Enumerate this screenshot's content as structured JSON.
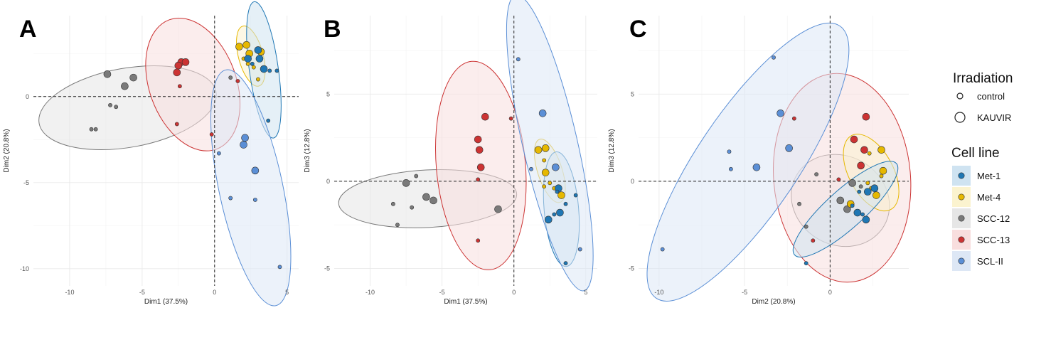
{
  "colors": {
    "Met-1": "#1f77b4",
    "Met-4": "#e6b800",
    "SCC-12": "#7a7a7a",
    "SCC-13": "#cc3333",
    "SCL-II": "#5b8fd6"
  },
  "fills": {
    "Met-1": "#cfe3f1",
    "Met-4": "#fbf3cf",
    "SCC-12": "#e6e6e6",
    "SCC-13": "#f8dede",
    "SCL-II": "#dde7f5"
  },
  "legend": {
    "irradiation_title": "Irradiation",
    "irradiation_items": [
      "control",
      "KAUVIR"
    ],
    "cellline_title": "Cell line",
    "cellline_items": [
      "Met-1",
      "Met-4",
      "SCC-12",
      "SCC-13",
      "SCL-II"
    ]
  },
  "chart_data": [
    {
      "type": "scatter",
      "panel": "A",
      "xlabel": "Dim1 (37.5%)",
      "ylabel": "Dim2 (20.8%)",
      "xlim": [
        -12.5,
        5.8
      ],
      "ylim": [
        -11.0,
        4.7
      ],
      "xticks": [
        -10,
        -5,
        0,
        5
      ],
      "yticks": [
        -10,
        -5,
        0
      ],
      "points": [
        {
          "g": "SCC-12",
          "x": -7.4,
          "y": 1.3,
          "k": 1
        },
        {
          "g": "SCC-12",
          "x": -5.6,
          "y": 1.1,
          "k": 1
        },
        {
          "g": "SCC-12",
          "x": -6.2,
          "y": 0.6,
          "k": 1
        },
        {
          "g": "SCC-12",
          "x": -7.2,
          "y": -0.5,
          "k": 0
        },
        {
          "g": "SCC-12",
          "x": -6.8,
          "y": -0.6,
          "k": 0
        },
        {
          "g": "SCC-12",
          "x": -8.5,
          "y": -1.9,
          "k": 0
        },
        {
          "g": "SCC-12",
          "x": -8.2,
          "y": -1.9,
          "k": 0
        },
        {
          "g": "SCC-12",
          "x": 1.1,
          "y": 1.1,
          "k": 0
        },
        {
          "g": "SCC-13",
          "x": -2.3,
          "y": 2.0,
          "k": 1
        },
        {
          "g": "SCC-13",
          "x": -2.0,
          "y": 2.0,
          "k": 1
        },
        {
          "g": "SCC-13",
          "x": -2.5,
          "y": 1.8,
          "k": 1
        },
        {
          "g": "SCC-13",
          "x": -2.6,
          "y": 1.4,
          "k": 1
        },
        {
          "g": "SCC-13",
          "x": -2.4,
          "y": 0.6,
          "k": 0
        },
        {
          "g": "SCC-13",
          "x": -2.6,
          "y": -1.6,
          "k": 0
        },
        {
          "g": "SCC-13",
          "x": -0.2,
          "y": -2.2,
          "k": 0
        },
        {
          "g": "SCC-13",
          "x": 1.6,
          "y": 0.9,
          "k": 0
        },
        {
          "g": "Met-4",
          "x": 1.7,
          "y": 2.9,
          "k": 1
        },
        {
          "g": "Met-4",
          "x": 2.2,
          "y": 3.0,
          "k": 1
        },
        {
          "g": "Met-4",
          "x": 3.2,
          "y": 2.6,
          "k": 1
        },
        {
          "g": "Met-4",
          "x": 2.4,
          "y": 2.5,
          "k": 1
        },
        {
          "g": "Met-4",
          "x": 2.0,
          "y": 2.2,
          "k": 0
        },
        {
          "g": "Met-4",
          "x": 2.3,
          "y": 1.9,
          "k": 0
        },
        {
          "g": "Met-4",
          "x": 2.7,
          "y": 1.7,
          "k": 0
        },
        {
          "g": "Met-4",
          "x": 3.0,
          "y": 1.0,
          "k": 0
        },
        {
          "g": "Met-1",
          "x": 3.0,
          "y": 2.7,
          "k": 1
        },
        {
          "g": "Met-1",
          "x": 2.3,
          "y": 2.2,
          "k": 1
        },
        {
          "g": "Met-1",
          "x": 3.1,
          "y": 2.2,
          "k": 1
        },
        {
          "g": "Met-1",
          "x": 3.4,
          "y": 1.6,
          "k": 1
        },
        {
          "g": "Met-1",
          "x": 3.8,
          "y": 1.5,
          "k": 0
        },
        {
          "g": "Met-1",
          "x": 4.3,
          "y": 1.5,
          "k": 0
        },
        {
          "g": "Met-1",
          "x": 2.6,
          "y": 1.9,
          "k": 0
        },
        {
          "g": "Met-1",
          "x": 3.7,
          "y": -1.4,
          "k": 0
        },
        {
          "g": "SCL-II",
          "x": 2.1,
          "y": -2.4,
          "k": 1
        },
        {
          "g": "SCL-II",
          "x": 2.0,
          "y": -2.8,
          "k": 1
        },
        {
          "g": "SCL-II",
          "x": 2.8,
          "y": -4.3,
          "k": 1
        },
        {
          "g": "SCL-II",
          "x": 0.3,
          "y": -3.3,
          "k": 0
        },
        {
          "g": "SCL-II",
          "x": 1.1,
          "y": -5.9,
          "k": 0
        },
        {
          "g": "SCL-II",
          "x": 2.8,
          "y": -6.0,
          "k": 0
        },
        {
          "g": "SCL-II",
          "x": 4.5,
          "y": -9.9,
          "k": 0
        }
      ],
      "ellipses": [
        {
          "g": "SCC-12",
          "cx": -6.0,
          "cy": -0.65,
          "rx": 6.2,
          "ry": 2.3,
          "rot": -10
        },
        {
          "g": "SCC-13",
          "cx": -1.5,
          "cy": 0.7,
          "rx": 3.0,
          "ry": 4.0,
          "rot": -20
        },
        {
          "g": "Met-4",
          "cx": 2.5,
          "cy": 2.35,
          "rx": 0.85,
          "ry": 1.8,
          "rot": -15
        },
        {
          "g": "Met-1",
          "cx": 3.4,
          "cy": 1.55,
          "rx": 1.0,
          "ry": 4.0,
          "rot": -8
        },
        {
          "g": "SCL-II",
          "cx": 2.5,
          "cy": -5.3,
          "rx": 2.2,
          "ry": 7.0,
          "rot": -12
        }
      ]
    },
    {
      "type": "scatter",
      "panel": "B",
      "xlabel": "Dim1 (37.5%)",
      "ylabel": "Dim3 (12.8%)",
      "xlim": [
        -12.5,
        5.8
      ],
      "ylim": [
        -6.0,
        9.5
      ],
      "xticks": [
        -10,
        -5,
        0,
        5
      ],
      "yticks": [
        -5,
        0,
        5
      ],
      "points": [
        {
          "g": "SCC-12",
          "x": -7.5,
          "y": -0.1,
          "k": 1
        },
        {
          "g": "SCC-12",
          "x": -6.1,
          "y": -0.9,
          "k": 1
        },
        {
          "g": "SCC-12",
          "x": -5.6,
          "y": -1.1,
          "k": 1
        },
        {
          "g": "SCC-12",
          "x": -6.8,
          "y": 0.3,
          "k": 0
        },
        {
          "g": "SCC-12",
          "x": -8.4,
          "y": -1.3,
          "k": 0
        },
        {
          "g": "SCC-12",
          "x": -7.1,
          "y": -1.5,
          "k": 0
        },
        {
          "g": "SCC-12",
          "x": -8.1,
          "y": -2.5,
          "k": 0
        },
        {
          "g": "SCC-12",
          "x": -1.1,
          "y": -1.6,
          "k": 1
        },
        {
          "g": "SCC-13",
          "x": -2.0,
          "y": 3.7,
          "k": 1
        },
        {
          "g": "SCC-13",
          "x": -2.5,
          "y": 2.4,
          "k": 1
        },
        {
          "g": "SCC-13",
          "x": -2.4,
          "y": 1.8,
          "k": 1
        },
        {
          "g": "SCC-13",
          "x": -2.3,
          "y": 0.8,
          "k": 1
        },
        {
          "g": "SCC-13",
          "x": -2.5,
          "y": 0.1,
          "k": 0
        },
        {
          "g": "SCC-13",
          "x": -2.5,
          "y": -3.4,
          "k": 0
        },
        {
          "g": "SCC-13",
          "x": -0.2,
          "y": 3.6,
          "k": 0
        },
        {
          "g": "Met-4",
          "x": 1.7,
          "y": 1.8,
          "k": 1
        },
        {
          "g": "Met-4",
          "x": 2.2,
          "y": 1.9,
          "k": 1
        },
        {
          "g": "Met-4",
          "x": 2.2,
          "y": 0.5,
          "k": 1
        },
        {
          "g": "Met-4",
          "x": 3.3,
          "y": -0.8,
          "k": 1
        },
        {
          "g": "Met-4",
          "x": 2.1,
          "y": 1.2,
          "k": 0
        },
        {
          "g": "Met-4",
          "x": 2.1,
          "y": -0.3,
          "k": 0
        },
        {
          "g": "Met-4",
          "x": 2.5,
          "y": -0.1,
          "k": 0
        },
        {
          "g": "Met-4",
          "x": 2.8,
          "y": -0.4,
          "k": 0
        },
        {
          "g": "Met-1",
          "x": 3.1,
          "y": -0.4,
          "k": 1
        },
        {
          "g": "Met-1",
          "x": 3.2,
          "y": -1.8,
          "k": 1
        },
        {
          "g": "Met-1",
          "x": 2.4,
          "y": -2.2,
          "k": 1
        },
        {
          "g": "Met-1",
          "x": 3.0,
          "y": -0.6,
          "k": 0
        },
        {
          "g": "Met-1",
          "x": 2.8,
          "y": -1.9,
          "k": 0
        },
        {
          "g": "Met-1",
          "x": 3.6,
          "y": -1.3,
          "k": 0
        },
        {
          "g": "Met-1",
          "x": 3.6,
          "y": -4.7,
          "k": 0
        },
        {
          "g": "Met-1",
          "x": 4.3,
          "y": -0.8,
          "k": 0
        },
        {
          "g": "SCL-II",
          "x": 2.0,
          "y": 3.9,
          "k": 1
        },
        {
          "g": "SCL-II",
          "x": 2.9,
          "y": 0.8,
          "k": 1
        },
        {
          "g": "SCL-II",
          "x": 0.3,
          "y": 7.0,
          "k": 0
        },
        {
          "g": "SCL-II",
          "x": 1.2,
          "y": 0.7,
          "k": 0
        },
        {
          "g": "SCL-II",
          "x": 4.6,
          "y": -3.9,
          "k": 0
        }
      ],
      "ellipses": [
        {
          "g": "SCC-12",
          "cx": -6.0,
          "cy": -1.0,
          "rx": 6.2,
          "ry": 1.65,
          "rot": -3
        },
        {
          "g": "SCC-13",
          "cx": -2.3,
          "cy": 0.9,
          "rx": 3.1,
          "ry": 6.0,
          "rot": -5
        },
        {
          "g": "Met-4",
          "cx": 2.5,
          "cy": 0.6,
          "rx": 0.85,
          "ry": 1.9,
          "rot": -18
        },
        {
          "g": "Met-1",
          "cx": 3.3,
          "cy": -1.6,
          "rx": 1.2,
          "ry": 3.3,
          "rot": -5
        },
        {
          "g": "SCL-II",
          "cx": 2.5,
          "cy": 2.2,
          "rx": 1.9,
          "ry": 8.7,
          "rot": -13
        }
      ]
    },
    {
      "type": "scatter",
      "panel": "C",
      "xlabel": "Dim2 (20.8%)",
      "ylabel": "Dim3 (12.8%)",
      "xlim": [
        -11.2,
        4.6
      ],
      "ylim": [
        -6.0,
        9.5
      ],
      "xticks": [
        -10,
        -5,
        0
      ],
      "yticks": [
        -5,
        0,
        5
      ],
      "points": [
        {
          "g": "SCC-12",
          "x": 0.6,
          "y": -1.1,
          "k": 1
        },
        {
          "g": "SCC-12",
          "x": 1.0,
          "y": -1.6,
          "k": 1
        },
        {
          "g": "SCC-12",
          "x": 1.3,
          "y": -0.1,
          "k": 1
        },
        {
          "g": "SCC-12",
          "x": -0.8,
          "y": 0.4,
          "k": 0
        },
        {
          "g": "SCC-12",
          "x": -1.8,
          "y": -1.3,
          "k": 0
        },
        {
          "g": "SCC-12",
          "x": -1.4,
          "y": -2.6,
          "k": 0
        },
        {
          "g": "SCC-12",
          "x": 1.8,
          "y": -0.3,
          "k": 0
        },
        {
          "g": "SCC-13",
          "x": 2.1,
          "y": 3.7,
          "k": 1
        },
        {
          "g": "SCC-13",
          "x": 1.4,
          "y": 2.4,
          "k": 1
        },
        {
          "g": "SCC-13",
          "x": 2.0,
          "y": 1.8,
          "k": 1
        },
        {
          "g": "SCC-13",
          "x": 1.8,
          "y": 0.9,
          "k": 1
        },
        {
          "g": "SCC-13",
          "x": -2.1,
          "y": 3.6,
          "k": 0
        },
        {
          "g": "SCC-13",
          "x": -1.0,
          "y": -3.4,
          "k": 0
        },
        {
          "g": "SCC-13",
          "x": 0.5,
          "y": 0.1,
          "k": 0
        },
        {
          "g": "Met-4",
          "x": 3.0,
          "y": 1.8,
          "k": 1
        },
        {
          "g": "Met-4",
          "x": 3.1,
          "y": 0.6,
          "k": 1
        },
        {
          "g": "Met-4",
          "x": 2.7,
          "y": -0.8,
          "k": 1
        },
        {
          "g": "Met-4",
          "x": 1.2,
          "y": -1.3,
          "k": 1
        },
        {
          "g": "Met-4",
          "x": 2.3,
          "y": 1.6,
          "k": 0
        },
        {
          "g": "Met-4",
          "x": 3.0,
          "y": 0.3,
          "k": 0
        },
        {
          "g": "Met-4",
          "x": 2.2,
          "y": -0.1,
          "k": 0
        },
        {
          "g": "Met-4",
          "x": 2.4,
          "y": -0.4,
          "k": 0
        },
        {
          "g": "Met-1",
          "x": 2.6,
          "y": -0.4,
          "k": 1
        },
        {
          "g": "Met-1",
          "x": 2.2,
          "y": -0.6,
          "k": 1
        },
        {
          "g": "Met-1",
          "x": 1.6,
          "y": -1.8,
          "k": 1
        },
        {
          "g": "Met-1",
          "x": 2.1,
          "y": -2.2,
          "k": 1
        },
        {
          "g": "Met-1",
          "x": 1.7,
          "y": -0.6,
          "k": 0
        },
        {
          "g": "Met-1",
          "x": 1.9,
          "y": -1.9,
          "k": 0
        },
        {
          "g": "Met-1",
          "x": -1.4,
          "y": -4.7,
          "k": 0
        },
        {
          "g": "Met-1",
          "x": 1.3,
          "y": -1.4,
          "k": 0
        },
        {
          "g": "SCL-II",
          "x": -2.9,
          "y": 3.9,
          "k": 1
        },
        {
          "g": "SCL-II",
          "x": -2.4,
          "y": 1.9,
          "k": 1
        },
        {
          "g": "SCL-II",
          "x": -4.3,
          "y": 0.8,
          "k": 1
        },
        {
          "g": "SCL-II",
          "x": -3.3,
          "y": 7.1,
          "k": 0
        },
        {
          "g": "SCL-II",
          "x": -5.9,
          "y": 1.7,
          "k": 0
        },
        {
          "g": "SCL-II",
          "x": -5.8,
          "y": 0.7,
          "k": 0
        },
        {
          "g": "SCL-II",
          "x": -9.8,
          "y": -3.9,
          "k": 0
        }
      ],
      "ellipses": [
        {
          "g": "SCC-12",
          "cx": 0.6,
          "cy": -1.1,
          "rx": 2.6,
          "ry": 2.9,
          "rot": -60
        },
        {
          "g": "SCC-13",
          "cx": 0.7,
          "cy": 0.2,
          "rx": 4.0,
          "ry": 6.0,
          "rot": -5
        },
        {
          "g": "Met-4",
          "cx": 2.4,
          "cy": 0.5,
          "rx": 1.3,
          "ry": 2.4,
          "rot": -28
        },
        {
          "g": "Met-1",
          "cx": 0.9,
          "cy": -1.6,
          "rx": 4.0,
          "ry": 1.1,
          "rot": -42
        },
        {
          "g": "SCL-II",
          "cx": -4.8,
          "cy": 1.1,
          "rx": 9.6,
          "ry": 2.9,
          "rot": -56
        }
      ]
    }
  ],
  "panels": [
    {
      "letter": "A"
    },
    {
      "letter": "B"
    },
    {
      "letter": "C"
    }
  ]
}
